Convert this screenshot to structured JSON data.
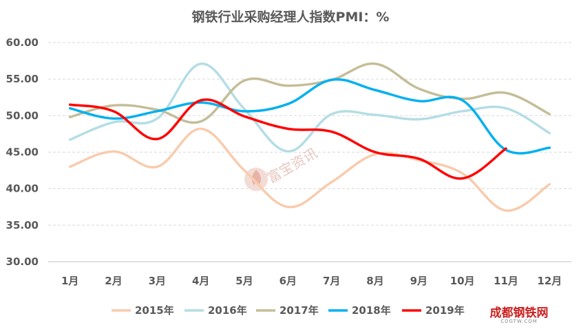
{
  "chart_data": {
    "type": "line",
    "title": "钢铁行业采购经理人指数PMI：%",
    "xlabel": "",
    "ylabel": "",
    "categories": [
      "1月",
      "2月",
      "3月",
      "4月",
      "5月",
      "6月",
      "7月",
      "8月",
      "9月",
      "10月",
      "11月",
      "12月"
    ],
    "ylim": [
      30,
      60
    ],
    "yticks": [
      "30.00",
      "35.00",
      "40.00",
      "45.00",
      "50.00",
      "55.00",
      "60.00"
    ],
    "grid": true,
    "legend": "bottom",
    "series": [
      {
        "name": "2015年",
        "color": "#f8cbad",
        "values": [
          43.0,
          45.1,
          43.0,
          48.2,
          42.5,
          37.5,
          40.9,
          44.7,
          43.9,
          42.1,
          37.0,
          40.6
        ]
      },
      {
        "name": "2016年",
        "color": "#b4dde5",
        "values": [
          46.7,
          49.1,
          49.6,
          57.1,
          50.9,
          45.1,
          50.2,
          50.1,
          49.5,
          50.6,
          51.0,
          47.6
        ]
      },
      {
        "name": "2017年",
        "color": "#c4bd97",
        "values": [
          49.8,
          51.4,
          50.8,
          49.2,
          54.8,
          54.1,
          54.9,
          57.1,
          53.7,
          52.3,
          53.1,
          50.2
        ]
      },
      {
        "name": "2018年",
        "color": "#00b0f0",
        "values": [
          51.0,
          49.6,
          50.6,
          51.8,
          50.6,
          51.6,
          54.9,
          53.5,
          52.0,
          52.1,
          45.3,
          45.6
        ]
      },
      {
        "name": "2019年",
        "color": "#ff0000",
        "values": [
          51.5,
          50.6,
          46.8,
          52.1,
          49.9,
          48.2,
          47.8,
          45.0,
          44.1,
          41.4,
          45.5,
          null
        ]
      }
    ]
  },
  "watermark": {
    "text": "富宝资讯"
  },
  "logo": {
    "main": "成都钢铁网",
    "sub": "CDGTW.COM"
  }
}
